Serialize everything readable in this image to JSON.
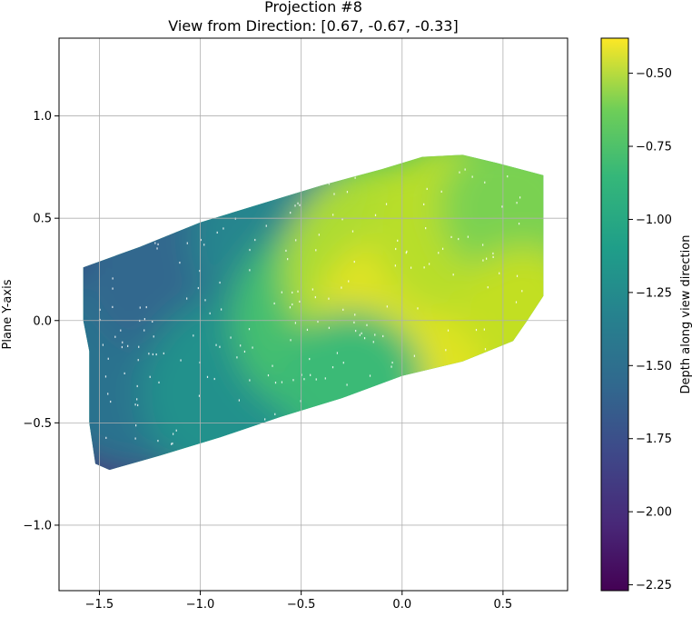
{
  "chart_data": {
    "type": "scatter",
    "title": "Projection #8",
    "subtitle": "View from Direction: [0.67, -0.67, -0.33]",
    "xlabel": "",
    "ylabel": "Plane Y-axis",
    "xlim": [
      -1.7,
      0.82
    ],
    "ylim": [
      -1.32,
      1.38
    ],
    "x_ticks": [
      -1.5,
      -1.0,
      -0.5,
      0.0,
      0.5
    ],
    "x_tick_labels": [
      "−1.5",
      "−1.0",
      "−0.5",
      "0.0",
      "0.5"
    ],
    "y_ticks": [
      -1.0,
      -0.5,
      0.0,
      0.5,
      1.0
    ],
    "y_tick_labels": [
      "−1.0",
      "−0.5",
      "0.0",
      "0.5",
      "1.0"
    ],
    "grid": true,
    "colorbar": {
      "label": "Depth along view direction",
      "colormap": "viridis",
      "range": [
        -2.27,
        -0.38
      ],
      "ticks": [
        -2.25,
        -2.0,
        -1.75,
        -1.5,
        -1.25,
        -1.0,
        -0.75,
        -0.5
      ],
      "tick_labels": [
        "−2.25",
        "−2.00",
        "−1.75",
        "−1.50",
        "−1.25",
        "−1.00",
        "−0.75",
        "−0.50"
      ]
    },
    "point_cloud_outline": [
      [
        -1.58,
        0.26
      ],
      [
        -1.3,
        0.36
      ],
      [
        -1.0,
        0.48
      ],
      [
        -0.7,
        0.57
      ],
      [
        -0.4,
        0.66
      ],
      [
        -0.1,
        0.74
      ],
      [
        0.1,
        0.8
      ],
      [
        0.3,
        0.81
      ],
      [
        0.47,
        0.77
      ],
      [
        0.7,
        0.71
      ],
      [
        0.7,
        0.12
      ],
      [
        0.62,
        0.0
      ],
      [
        0.55,
        -0.1
      ],
      [
        0.3,
        -0.2
      ],
      [
        0.0,
        -0.27
      ],
      [
        -0.3,
        -0.38
      ],
      [
        -0.6,
        -0.47
      ],
      [
        -0.9,
        -0.57
      ],
      [
        -1.2,
        -0.66
      ],
      [
        -1.45,
        -0.73
      ],
      [
        -1.52,
        -0.7
      ],
      [
        -1.55,
        -0.5
      ],
      [
        -1.55,
        -0.15
      ],
      [
        -1.58,
        0.0
      ]
    ],
    "depth_extremes": {
      "max_depth_point": [
        0.05,
        -0.05
      ],
      "min_depth_points": [
        [
          -1.58,
          0.26
        ],
        [
          -1.45,
          -0.73
        ]
      ]
    }
  }
}
